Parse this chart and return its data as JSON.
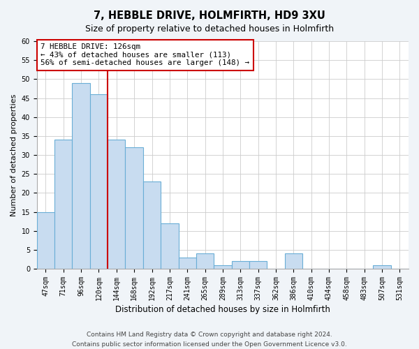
{
  "title": "7, HEBBLE DRIVE, HOLMFIRTH, HD9 3XU",
  "subtitle": "Size of property relative to detached houses in Holmfirth",
  "xlabel": "Distribution of detached houses by size in Holmfirth",
  "ylabel": "Number of detached properties",
  "bar_labels": [
    "47sqm",
    "71sqm",
    "96sqm",
    "120sqm",
    "144sqm",
    "168sqm",
    "192sqm",
    "217sqm",
    "241sqm",
    "265sqm",
    "289sqm",
    "313sqm",
    "337sqm",
    "362sqm",
    "386sqm",
    "410sqm",
    "434sqm",
    "458sqm",
    "483sqm",
    "507sqm",
    "531sqm"
  ],
  "bar_values": [
    15,
    34,
    49,
    46,
    34,
    32,
    23,
    12,
    3,
    4,
    1,
    2,
    2,
    0,
    4,
    0,
    0,
    0,
    0,
    1,
    0
  ],
  "bar_color": "#c8dcf0",
  "bar_edge_color": "#6aaed6",
  "vline_index": 3,
  "vline_color": "#cc0000",
  "annotation_title": "7 HEBBLE DRIVE: 126sqm",
  "annotation_line1": "← 43% of detached houses are smaller (113)",
  "annotation_line2": "56% of semi-detached houses are larger (148) →",
  "annotation_box_facecolor": "#ffffff",
  "annotation_box_edgecolor": "#cc0000",
  "ylim": [
    0,
    60
  ],
  "yticks": [
    0,
    5,
    10,
    15,
    20,
    25,
    30,
    35,
    40,
    45,
    50,
    55,
    60
  ],
  "bg_color": "#f0f4f8",
  "plot_bg_color": "#ffffff",
  "footnote1": "Contains HM Land Registry data © Crown copyright and database right 2024.",
  "footnote2": "Contains public sector information licensed under the Open Government Licence v3.0.",
  "title_fontsize": 10.5,
  "subtitle_fontsize": 9,
  "ylabel_fontsize": 8,
  "xlabel_fontsize": 8.5,
  "tick_fontsize": 7,
  "annotation_fontsize": 7.8,
  "footnote_fontsize": 6.5
}
